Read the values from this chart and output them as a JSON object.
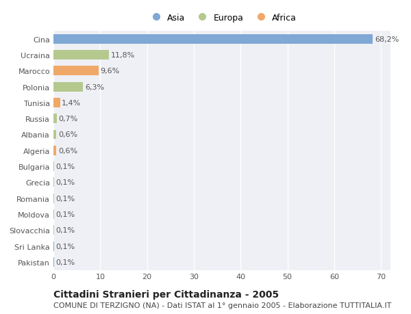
{
  "categories": [
    "Pakistan",
    "Sri Lanka",
    "Slovacchia",
    "Moldova",
    "Romania",
    "Grecia",
    "Bulgaria",
    "Algeria",
    "Albania",
    "Russia",
    "Tunisia",
    "Polonia",
    "Marocco",
    "Ucraina",
    "Cina"
  ],
  "values": [
    0.1,
    0.1,
    0.1,
    0.1,
    0.1,
    0.1,
    0.1,
    0.6,
    0.6,
    0.7,
    1.4,
    6.3,
    9.6,
    11.8,
    68.2
  ],
  "labels": [
    "0,1%",
    "0,1%",
    "0,1%",
    "0,1%",
    "0,1%",
    "0,1%",
    "0,1%",
    "0,6%",
    "0,6%",
    "0,7%",
    "1,4%",
    "6,3%",
    "9,6%",
    "11,8%",
    "68,2%"
  ],
  "colors": [
    "#7fa8d4",
    "#7fa8d4",
    "#b5c98e",
    "#b5c98e",
    "#b5c98e",
    "#b5c98e",
    "#b5c98e",
    "#f0a868",
    "#b5c98e",
    "#b5c98e",
    "#f0a868",
    "#b5c98e",
    "#f0a868",
    "#b5c98e",
    "#7fa8d4"
  ],
  "legend_labels": [
    "Asia",
    "Europa",
    "Africa"
  ],
  "legend_colors": [
    "#7fa8d4",
    "#b5c98e",
    "#f0a868"
  ],
  "title": "Cittadini Stranieri per Cittadinanza - 2005",
  "subtitle": "COMUNE DI TERZIGNO (NA) - Dati ISTAT al 1° gennaio 2005 - Elaborazione TUTTITALIA.IT",
  "xlim": [
    0,
    72
  ],
  "xticks": [
    0,
    10,
    20,
    30,
    40,
    50,
    60,
    70
  ],
  "fig_bg_color": "#ffffff",
  "plot_bg_color": "#eef0f5",
  "grid_color": "#ffffff",
  "title_fontsize": 10,
  "subtitle_fontsize": 8,
  "label_fontsize": 8,
  "tick_fontsize": 8,
  "legend_fontsize": 9
}
